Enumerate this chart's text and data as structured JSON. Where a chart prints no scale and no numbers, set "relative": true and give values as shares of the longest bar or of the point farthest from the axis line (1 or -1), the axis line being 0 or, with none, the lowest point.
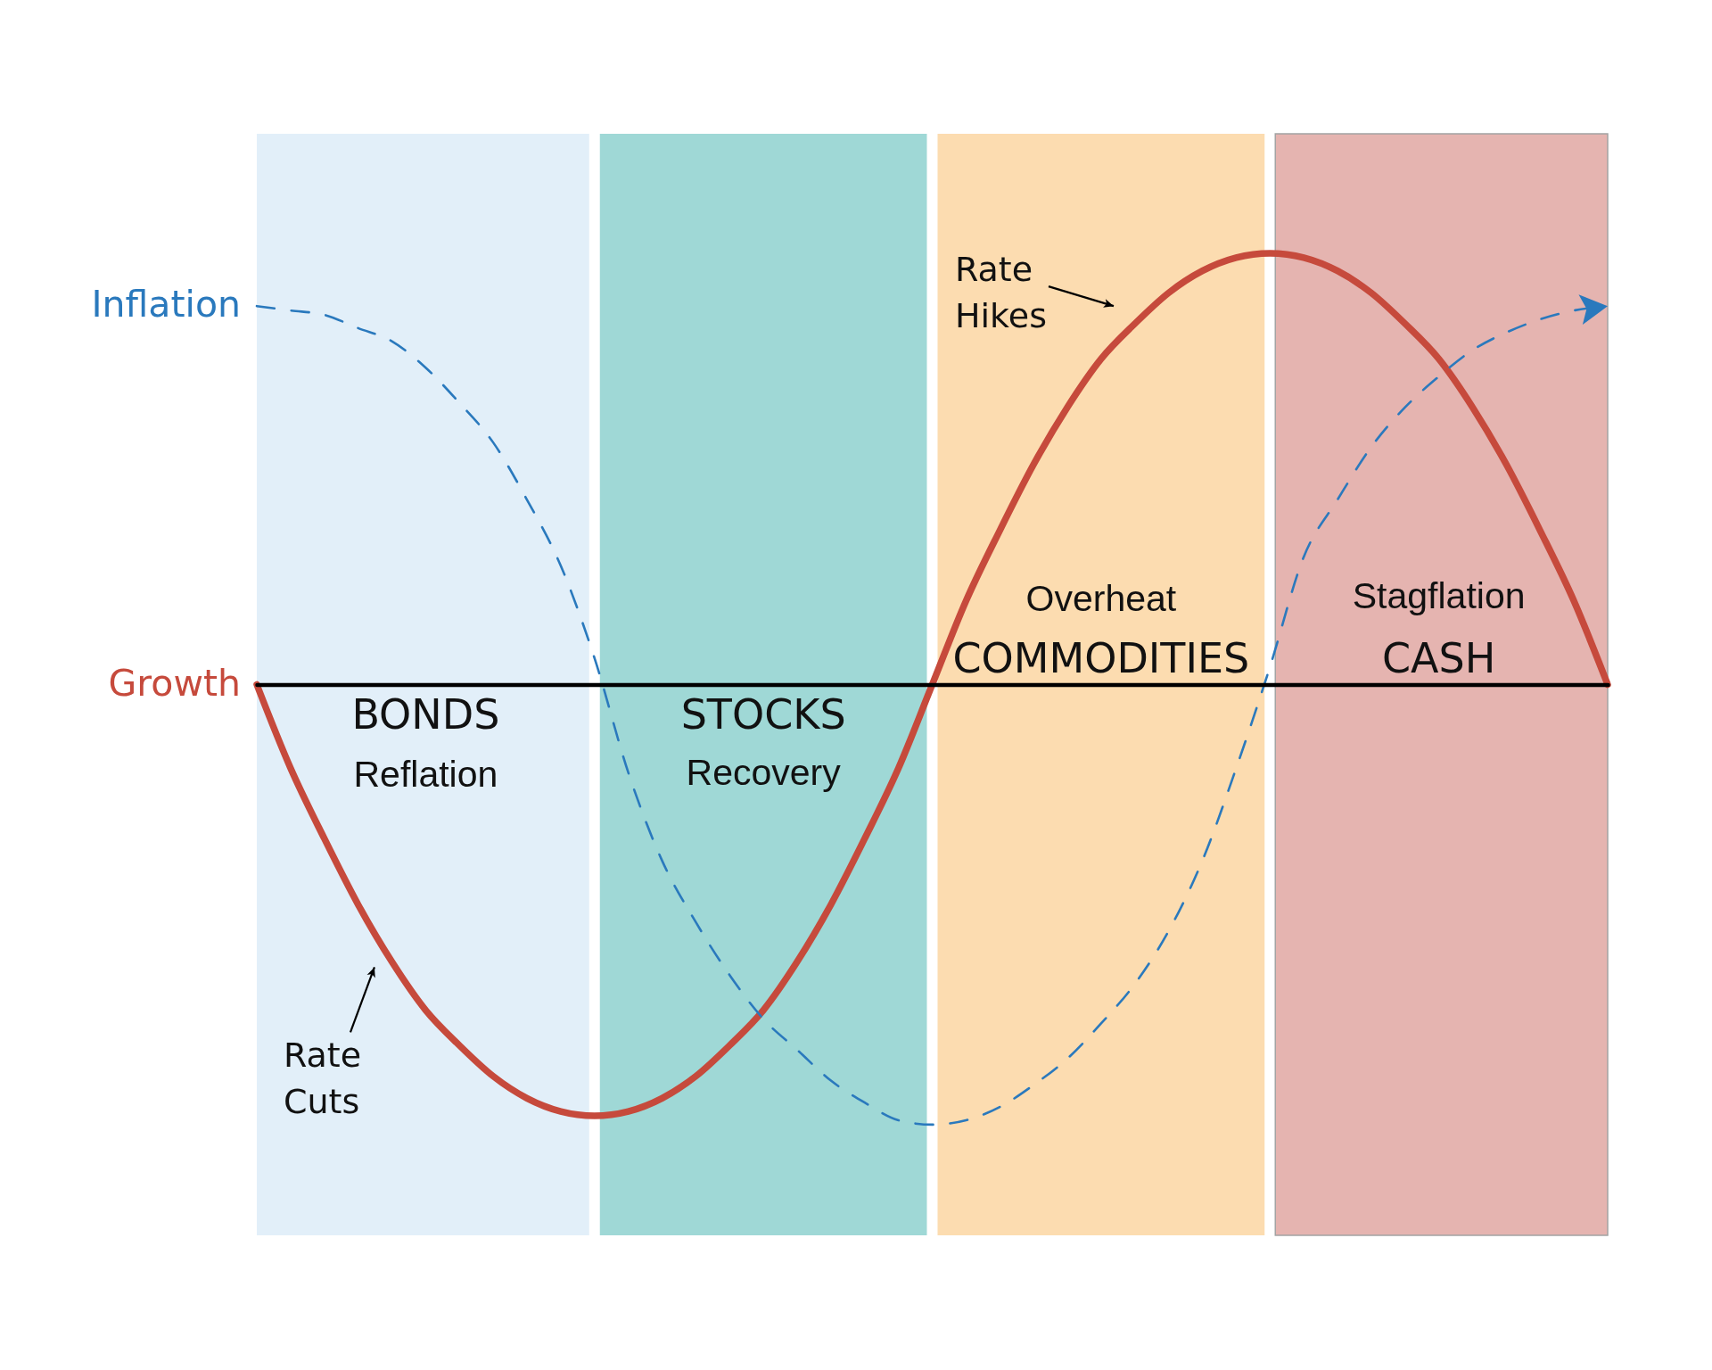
{
  "chart_data": {
    "type": "line",
    "relative": true,
    "categories": [
      null,
      null,
      null,
      null,
      null,
      null,
      null,
      null,
      null,
      null,
      null,
      null,
      null,
      null,
      null,
      null,
      null,
      null,
      null,
      null,
      null,
      null,
      null,
      null,
      null,
      null,
      null,
      null,
      null,
      null,
      null,
      null,
      null,
      null,
      null,
      null,
      null,
      null,
      null,
      null,
      null
    ],
    "series": [
      {
        "name": "Growth",
        "color": "#c64a3c",
        "line_style": "solid",
        "values": [
          0,
          -0.19,
          -0.35,
          -0.5,
          -0.63,
          -0.74,
          -0.82,
          -0.89,
          -0.94,
          -0.97,
          -0.98,
          -0.97,
          -0.94,
          -0.89,
          -0.82,
          -0.74,
          -0.63,
          -0.5,
          -0.35,
          -0.19,
          0,
          0.19,
          0.35,
          0.5,
          0.63,
          0.74,
          0.82,
          0.89,
          0.94,
          0.97,
          0.98,
          0.97,
          0.94,
          0.89,
          0.82,
          0.74,
          0.63,
          0.5,
          0.35,
          0.19,
          0
        ]
      },
      {
        "name": "Inflation",
        "color": "#2a79bd",
        "line_style": "dashed",
        "values": [
          0.86,
          0.85,
          0.84,
          0.81,
          0.78,
          0.72,
          0.64,
          0.55,
          0.42,
          0.27,
          0.06,
          -0.2,
          -0.4,
          -0.54,
          -0.66,
          -0.76,
          -0.83,
          -0.9,
          -0.95,
          -0.99,
          -1,
          -0.99,
          -0.96,
          -0.91,
          -0.85,
          -0.77,
          -0.68,
          -0.56,
          -0.4,
          -0.19,
          0.04,
          0.29,
          0.42,
          0.54,
          0.63,
          0.7,
          0.76,
          0.8,
          0.83,
          0.85,
          0.86
        ]
      }
    ],
    "annotations": [
      "BONDS",
      "Reflation",
      "STOCKS",
      "Recovery",
      "Overheat",
      "COMMODITIES",
      "Stagflation",
      "CASH",
      "Rate Cuts",
      "Rate Hikes"
    ]
  }
}
